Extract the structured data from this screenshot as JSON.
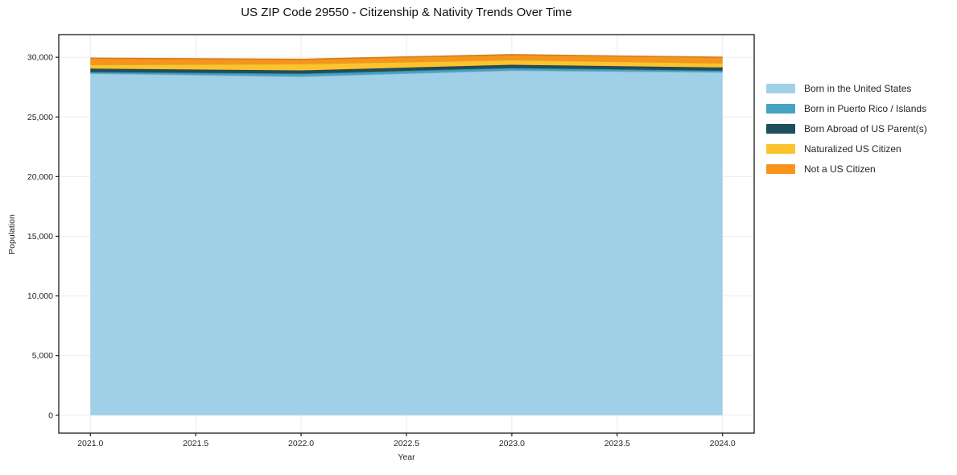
{
  "chart_data": {
    "type": "area",
    "stacked": true,
    "title": "US ZIP Code 29550 - Citizenship & Nativity Trends Over Time",
    "xlabel": "Year",
    "ylabel": "Population",
    "x": [
      2021,
      2022,
      2023,
      2024
    ],
    "series": [
      {
        "name": "Born in the United States",
        "color": "#a0d0e8",
        "values": [
          28650,
          28400,
          28900,
          28750
        ]
      },
      {
        "name": "Born in Puerto Rico / Islands",
        "color": "#45a3c4",
        "values": [
          120,
          230,
          200,
          130
        ]
      },
      {
        "name": "Born Abroad of US Parent(s)",
        "color": "#1f4e5e",
        "values": [
          280,
          270,
          270,
          270
        ]
      },
      {
        "name": "Naturalized US Citizen",
        "color": "#fcc32d",
        "values": [
          340,
          560,
          420,
          370
        ]
      },
      {
        "name": "Not a US Citizen",
        "color": "#f7941d",
        "values": [
          530,
          370,
          430,
          480
        ]
      }
    ],
    "totals": [
      29920,
      29830,
      30220,
      30000
    ],
    "xticks": [
      2021.0,
      2021.5,
      2022.0,
      2022.5,
      2023.0,
      2023.5,
      2024.0
    ],
    "xtick_labels": [
      "2021.0",
      "2021.5",
      "2022.0",
      "2022.5",
      "2023.0",
      "2023.5",
      "2024.0"
    ],
    "yticks": [
      0,
      5000,
      10000,
      15000,
      20000,
      25000,
      30000
    ],
    "ytick_labels": [
      "0",
      "5,000",
      "10,000",
      "15,000",
      "20,000",
      "25,000",
      "30,000"
    ],
    "xlim": [
      2020.85,
      2024.15
    ],
    "ylim": [
      -1500,
      31900
    ],
    "grid": true,
    "legend_position": "right-outside",
    "colors": {
      "background": "#ffffff",
      "gridline": "#ebebeb",
      "spine": "#1a1a1a",
      "tick_text": "#262626",
      "title_text": "#111111"
    }
  }
}
